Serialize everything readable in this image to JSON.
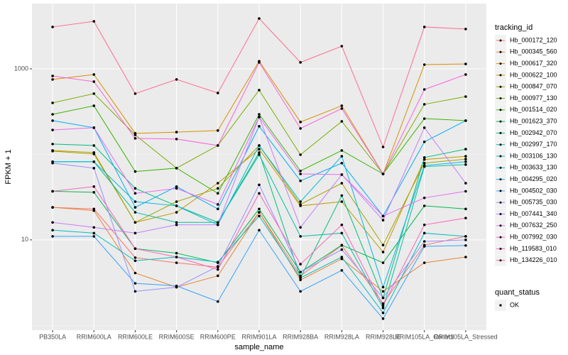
{
  "chart_data": {
    "type": "line",
    "x_label": "sample_name",
    "y_label": "FPKM + 1",
    "legend_title": "tracking_id",
    "shape_legend_title": "quant_status",
    "shape_legend_labels": [
      "OK"
    ],
    "log_y": true,
    "grid": true,
    "legend_position": "right",
    "ylim": [
      0.88,
      5800
    ],
    "yticks": [
      10,
      1000
    ],
    "categories": [
      "PB350LA",
      "RRIM600LA",
      "RRIM600LE",
      "RRIM600SE",
      "RRIM600PE",
      "RRIM901LA",
      "RRIM928BA",
      "RRIM928LA",
      "RRIM928LE",
      "RRIM105LA_Control",
      "RRIM105LA_Stressed"
    ],
    "series": [
      {
        "name": "Hb_000172_120",
        "color": "#F8766D",
        "values": [
          24,
          23,
          6.2,
          5.4,
          4.8,
          21,
          3.8,
          8.6,
          1.8,
          8.7,
          11
        ]
      },
      {
        "name": "Hb_000345_560",
        "color": "#EA8331",
        "values": [
          24,
          22,
          4.1,
          2.8,
          3.8,
          21,
          3.4,
          6.0,
          2.5,
          5.4,
          6.3
        ]
      },
      {
        "name": "Hb_000617_320",
        "color": "#D89000",
        "values": [
          752,
          858,
          176,
          182,
          190,
          1230,
          239,
          370,
          59,
          1120,
          1140
        ]
      },
      {
        "name": "Hb_000622_100",
        "color": "#C09B00",
        "values": [
          111,
          105,
          16,
          21,
          46,
          115,
          25,
          28,
          7.2,
          87,
          95
        ]
      },
      {
        "name": "Hb_000847_070",
        "color": "#A3A500",
        "values": [
          109,
          101,
          16,
          28,
          40,
          127,
          26,
          46,
          8.7,
          79,
          88
        ]
      },
      {
        "name": "Hb_000977_130",
        "color": "#7CAE00",
        "values": [
          400,
          513,
          169,
          69,
          127,
          564,
          99,
          243,
          59,
          385,
          474
        ]
      },
      {
        "name": "Hb_001514_020",
        "color": "#39B600",
        "values": [
          294,
          370,
          63,
          69,
          35,
          294,
          64,
          111,
          59,
          262,
          248
        ]
      },
      {
        "name": "Hb_001623_370",
        "color": "#00BB4E",
        "values": [
          37,
          36,
          7.9,
          7.0,
          5.4,
          23,
          4.2,
          8.7,
          5.4,
          25,
          23
        ]
      },
      {
        "name": "Hb_002942_070",
        "color": "#00BF7D",
        "values": [
          132,
          127,
          40,
          25,
          16,
          105,
          3.6,
          33,
          2.1,
          92,
          115
        ]
      },
      {
        "name": "Hb_002997_170",
        "color": "#00C1A3",
        "values": [
          82,
          82,
          21,
          16,
          16,
          99,
          11,
          12,
          1.6,
          72,
          76
        ]
      },
      {
        "name": "Hb_003106_130",
        "color": "#00BFC4",
        "values": [
          13,
          12,
          5.7,
          6.3,
          5.5,
          19,
          3.6,
          6.3,
          1.4,
          12,
          11
        ]
      },
      {
        "name": "Hb_003633_130",
        "color": "#00BAE0",
        "values": [
          82,
          82,
          28,
          25,
          15,
          127,
          28,
          95,
          2.8,
          74,
          82
        ]
      },
      {
        "name": "Hb_004295_020",
        "color": "#00B0F6",
        "values": [
          248,
          205,
          24,
          42,
          23,
          213,
          49,
          79,
          19,
          140,
          248
        ]
      },
      {
        "name": "Hb_004502_030",
        "color": "#35A2FF",
        "values": [
          11,
          11,
          3.1,
          2.9,
          1.9,
          13,
          2.5,
          4.4,
          1.2,
          8.4,
          8.6
        ]
      },
      {
        "name": "Hb_005735_030",
        "color": "#9590FF",
        "values": [
          79,
          69,
          2.5,
          2.8,
          4.9,
          44,
          4.2,
          7.7,
          2.1,
          9.6,
          10
        ]
      },
      {
        "name": "Hb_007441_340",
        "color": "#C77CFF",
        "values": [
          16,
          14,
          12,
          15,
          15,
          273,
          14,
          58,
          17,
          205,
          46
        ]
      },
      {
        "name": "Hb_007632_250",
        "color": "#E76BF3",
        "values": [
          193,
          205,
          35,
          40,
          26,
          273,
          59,
          58,
          19,
          31,
          37
        ]
      },
      {
        "name": "Hb_007992_030",
        "color": "#FA62DB",
        "values": [
          826,
          709,
          154,
          151,
          127,
          1190,
          201,
          343,
          59,
          574,
          858
        ]
      },
      {
        "name": "Hb_119583_010",
        "color": "#FF62BC",
        "values": [
          37,
          42,
          7.9,
          6.3,
          4.5,
          35,
          5.2,
          15,
          1.7,
          15,
          18
        ]
      },
      {
        "name": "Hb_134226_010",
        "color": "#FF6C91",
        "values": [
          3090,
          3590,
          513,
          752,
          522,
          3880,
          1190,
          1840,
          122,
          3090,
          2920
        ]
      }
    ]
  }
}
